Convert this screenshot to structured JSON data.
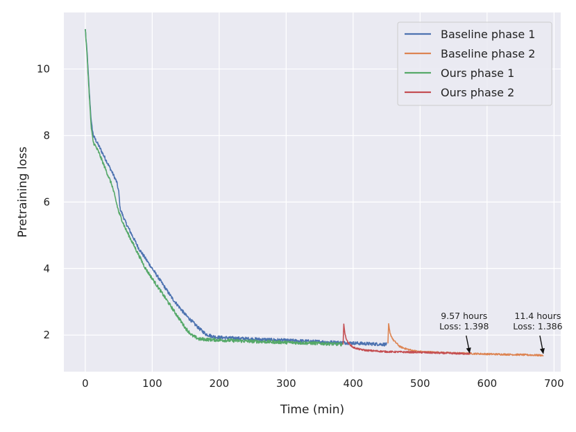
{
  "chart_data": {
    "type": "line",
    "xlabel": "Time (min)",
    "ylabel": "Pretraining loss",
    "xlim": [
      -32,
      710
    ],
    "ylim": [
      0.9,
      11.7
    ],
    "xticks": [
      0,
      100,
      200,
      300,
      400,
      500,
      600,
      700
    ],
    "yticks": [
      2,
      4,
      6,
      8,
      10
    ],
    "grid": true,
    "legend_position": "top-right",
    "colors": {
      "background": "#eaeaf2",
      "grid": "#ffffff",
      "baseline_phase_1": "#4c72b0",
      "baseline_phase_2": "#dd8452",
      "ours_phase_1": "#55a868",
      "ours_phase_2": "#c44e52"
    },
    "series": [
      {
        "name": "Baseline phase 1",
        "color_key": "baseline_phase_1",
        "points": [
          [
            0,
            11.2
          ],
          [
            3,
            10.4
          ],
          [
            6,
            9.3
          ],
          [
            9,
            8.4
          ],
          [
            12,
            8.0
          ],
          [
            20,
            7.7
          ],
          [
            30,
            7.3
          ],
          [
            40,
            6.9
          ],
          [
            47,
            6.6
          ],
          [
            50,
            6.3
          ],
          [
            52,
            5.8
          ],
          [
            60,
            5.4
          ],
          [
            70,
            5.0
          ],
          [
            80,
            4.6
          ],
          [
            90,
            4.3
          ],
          [
            100,
            4.0
          ],
          [
            110,
            3.7
          ],
          [
            120,
            3.4
          ],
          [
            130,
            3.1
          ],
          [
            140,
            2.85
          ],
          [
            150,
            2.6
          ],
          [
            160,
            2.4
          ],
          [
            170,
            2.2
          ],
          [
            180,
            2.03
          ],
          [
            190,
            1.96
          ],
          [
            200,
            1.93
          ],
          [
            250,
            1.88
          ],
          [
            300,
            1.84
          ],
          [
            350,
            1.8
          ],
          [
            400,
            1.76
          ],
          [
            420,
            1.74
          ],
          [
            450,
            1.72
          ]
        ],
        "noise": 0.05
      },
      {
        "name": "Baseline phase 2",
        "color_key": "baseline_phase_2",
        "points": [
          [
            452,
            1.75
          ],
          [
            453,
            2.32
          ],
          [
            455,
            2.05
          ],
          [
            460,
            1.85
          ],
          [
            465,
            1.75
          ],
          [
            470,
            1.65
          ],
          [
            480,
            1.58
          ],
          [
            490,
            1.53
          ],
          [
            500,
            1.5
          ],
          [
            550,
            1.46
          ],
          [
            600,
            1.43
          ],
          [
            650,
            1.41
          ],
          [
            684,
            1.39
          ]
        ],
        "noise": 0.025
      },
      {
        "name": "Ours phase 1",
        "color_key": "ours_phase_1",
        "points": [
          [
            0,
            11.2
          ],
          [
            3,
            10.3
          ],
          [
            6,
            9.2
          ],
          [
            9,
            8.2
          ],
          [
            12,
            7.8
          ],
          [
            20,
            7.5
          ],
          [
            30,
            7.0
          ],
          [
            40,
            6.5
          ],
          [
            50,
            5.7
          ],
          [
            60,
            5.2
          ],
          [
            70,
            4.8
          ],
          [
            80,
            4.4
          ],
          [
            90,
            4.0
          ],
          [
            100,
            3.7
          ],
          [
            110,
            3.4
          ],
          [
            120,
            3.1
          ],
          [
            130,
            2.8
          ],
          [
            140,
            2.5
          ],
          [
            150,
            2.2
          ],
          [
            160,
            1.98
          ],
          [
            170,
            1.88
          ],
          [
            200,
            1.85
          ],
          [
            250,
            1.81
          ],
          [
            300,
            1.78
          ],
          [
            350,
            1.75
          ],
          [
            385,
            1.72
          ]
        ],
        "noise": 0.05
      },
      {
        "name": "Ours phase 2",
        "color_key": "ours_phase_2",
        "points": [
          [
            385,
            1.72
          ],
          [
            386,
            2.35
          ],
          [
            388,
            2.0
          ],
          [
            392,
            1.78
          ],
          [
            400,
            1.63
          ],
          [
            410,
            1.57
          ],
          [
            420,
            1.54
          ],
          [
            450,
            1.5
          ],
          [
            500,
            1.48
          ],
          [
            550,
            1.45
          ],
          [
            575,
            1.44
          ]
        ],
        "noise": 0.025
      }
    ],
    "annotations": [
      {
        "line1": "9.57 hours",
        "line2": "Loss: 1.398",
        "arrow_x": 574,
        "arrow_y": 1.45
      },
      {
        "line1": "11.4 hours",
        "line2": "Loss: 1.386",
        "arrow_x": 684,
        "arrow_y": 1.43
      }
    ]
  }
}
